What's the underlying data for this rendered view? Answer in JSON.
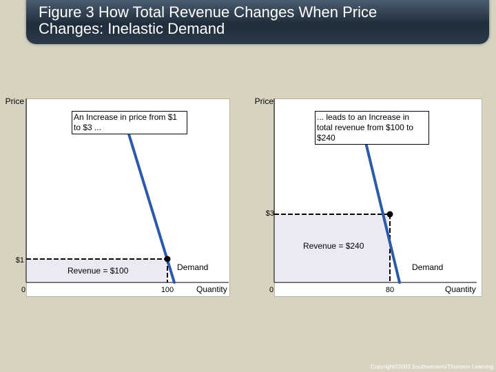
{
  "title": "Figure 3 How Total Revenue Changes When Price Changes: Inelastic Demand",
  "title_lines": [
    "Figure 3 How Total Revenue Changes When Price",
    "Changes: Inelastic Demand"
  ],
  "copyright": "Copyright©2003 Southwestern/Thomson Learning",
  "colors": {
    "demand_line": "#2a5aa8",
    "revenue_fill": "#ece8f4",
    "background": "#d8d3c0",
    "banner": "#2c3b4b"
  },
  "chart_data": [
    {
      "type": "line",
      "panel": "left",
      "ylabel": "Price",
      "xlabel": "Quantity",
      "curve_label": "Demand",
      "annotation": "An Increase in price from $1 to $3 ...",
      "point": {
        "price": 1,
        "quantity": 100,
        "price_label": "$1",
        "quantity_label": "100"
      },
      "revenue_label": "Revenue = $100",
      "origin_label": "0"
    },
    {
      "type": "line",
      "panel": "right",
      "ylabel": "Price",
      "xlabel": "Quantity",
      "curve_label": "Demand",
      "annotation": "... leads to an Increase in total revenue from $100 to $240",
      "point": {
        "price": 3,
        "quantity": 80,
        "price_label": "$3",
        "quantity_label": "80"
      },
      "revenue_label": "Revenue = $240",
      "origin_label": "0"
    }
  ]
}
